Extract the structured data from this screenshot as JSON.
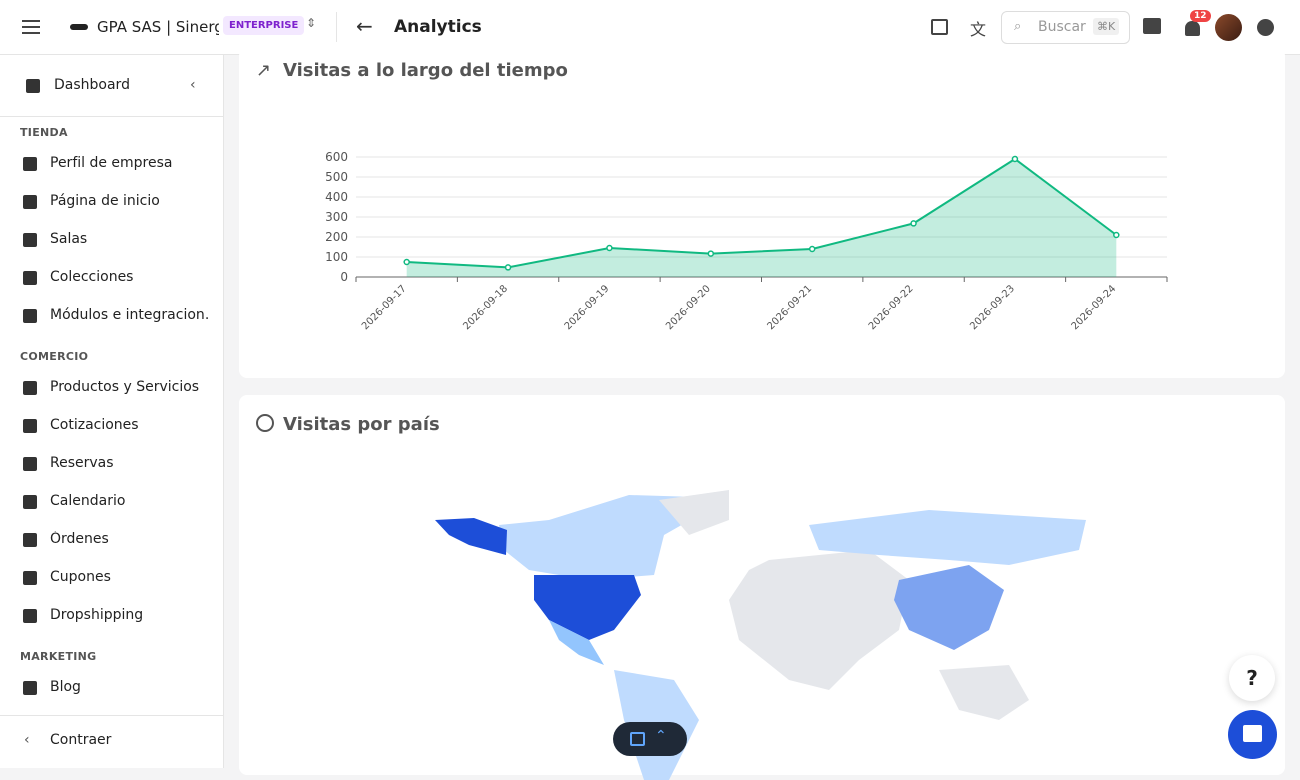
{
  "header": {
    "org": "GPA SAS | Sinergi…",
    "badge": "ENTERPRISE",
    "title": "Analytics",
    "search": "Buscar",
    "shortcut": "⌘K",
    "notifications": "12"
  },
  "sidebar": {
    "dashboard": "Dashboard",
    "sections": [
      {
        "title": "TIENDA",
        "items": [
          "Perfil de empresa",
          "Página de inicio",
          "Salas",
          "Colecciones",
          "Módulos e integracion…"
        ]
      },
      {
        "title": "COMERCIO",
        "items": [
          "Productos y Servicios",
          "Cotizaciones",
          "Reservas",
          "Calendario",
          "Órdenes",
          "Cupones",
          "Dropshipping"
        ]
      },
      {
        "title": "MARKETING",
        "items": [
          "Blog"
        ]
      }
    ],
    "collapse": "Contraer"
  },
  "cards": {
    "visits_over_time": {
      "title": "Visitas a lo largo del tiempo",
      "chart": {
        "type": "line",
        "categories": [
          "2026-09-17",
          "2026-09-18",
          "2026-09-19",
          "2026-09-20",
          "2026-09-21",
          "2026-09-22",
          "2026-09-23",
          "2026-09-24"
        ],
        "values": [
          75,
          48,
          145,
          117,
          140,
          268,
          590,
          210
        ],
        "color": "#10b981",
        "ylim": [
          0,
          600
        ],
        "yticks": [
          0,
          100,
          200,
          300,
          400,
          500,
          600
        ],
        "grid": true
      }
    },
    "visits_by_country": {
      "title": "Visitas por país"
    }
  }
}
